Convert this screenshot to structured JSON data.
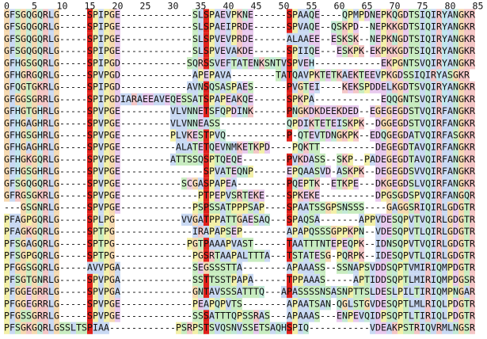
{
  "ruler": [
    0,
    5,
    10,
    15,
    20,
    25,
    30,
    35,
    40,
    45,
    50,
    55,
    60,
    65,
    70,
    75,
    80,
    85
  ],
  "rows": [
    "GFSGQGQRLG-----SPIPGE-------------SLSPAEVPKNE------SPAAQE----QPMPDNEPKQGDTSIQIRYANGKR",
    "GFSGQGQRLG-----SPIPGE-------------SLSPAEIPRDE------SPVAQE--QSKPD--NEPKKGDTSIQIRYANGKR",
    "GFSGQGQRLG-----SPIPGE-------------SLSPVEVPRDE------ALAAEE--ESKSK--NEPKNGDTSIQIRYANGKR",
    "GFSGQGQRLG-----SPIPGE-------------SLSPVEVAKDE------SPIIQE---ESKPK-EKPKKGDTSIQIRYANGKR",
    "GFHGSGQRLG-----SPIPGD------------SQRSSVEFTATENKSNTVSPVEH------------EKPGNTSVQIRYANGKR",
    "GFHGRGQRLG-----SPVPGD-------------APEPAVA--------TATQAVPKTETKAEKTEEVPKGDSSIQIRYASGKR",
    "GFQGTGKRLG-----SPIPGD------------AVNSQSASPAES------PVGTEI----KEKSPDDELKGDTSVQIRYANGKR",
    "GFGGSGRRLG-----SPIPGDIARAEEAVEQESSATSPAPEAKQE------SPKPA------------EQQGNTSVQIRYANGKR",
    "GFHGTGHRLG-----SPVPGE---------VLVNNETSFQPDINK------PNGKDKDEEKDED--EGEGEGDSTVQIRFANGKR",
    "GFHGAGHRLG-----SPVPGE---------VLVNNEASS------------QPDIKTETEISKPK--DGGEGDSTVQIRFANGKR",
    "GFHGSGHRLG-----SPVPGE---------PLVKESTPVQ-----------P-QTEVTDNGKPK--EDQGEGDATVQIRFASGKR",
    "GFHGAGHRLG-----SPVPGE----------ALATETQEVNMKETKPD----PQKTT----------DEGEGDTAVQIRFANGKR",
    "GFHGKGQRLG-----SPVPGE---------ATTSSQSPTQEQE--------PVKDASS--SKP--PADEGEGDTAVQIRFANGKR",
    "GFHGSGHRLG-----SPVPGE---------------SPVATEQNP------EPQAASVD-ASKPK--DEGEGDSVVQIRFANGKR",
    "GFSGQGQRLG-----SPVPGE-----------SCGASPAPEA---------PQEPTK--ETKPE---DKGEGDSLVQIRFANGKR",
    "GFRGSGKRLG-----SPVPGE--------------PTPEPVSRTEKE----SPKEKE----------DPGSGDSPVQIRFANGQR",
    "---GSGNRLG-----SPVPGE-------------PSPSSATPPPSAP----SPAATSSGPSNSSS----GAGGSRIQIRLGDGTR",
    "PFAGPGQRLG-----SPLPG------------VVGATPPATTGAESAQ---SPAQSA-------APPVDESQPVTVQIRLGDGTR",
    "PFAGKGQRLG-----SPTPG--------------IRAPAPSEP--------APAPQSSSGPPKPN--VDESQPVTLQIRLGDGTR",
    "PFSGAGQRLG-----SPTPG-------------PGTPAAAPVAST------TAATTTNTEPEQPK--IDNSQPVTVQIRLGDGTR",
    "PFSGPGQRLG-----SPTPG--------------PGSRTAAPALTTTA---TSTATESG-PQRPK--IDESQPVTLQIRLGDGTR",
    "PFGGSGQRLG-----AVVPGA-------------SEGSSSTTA--------APAAASS--SSNAPSVDDSQPTVMIRIQMPDGTR",
    "PFSGTGNRLG-----SPVPGA-------------SSTTSSTPAPA------TPPAAAS-----APTIDDSQPTLMIRIQMPDGSR",
    "PFGGEGRRLG-----SPVPGA-------------GNTAVSSSATTTQ---APASSSSNSASNPTTSLDESLPILTIRIQMPNGAR",
    "PFGGEGRRLG-----SPVPGE-------------PEAPQPVTS--------APAATSAN-QGLSTGVDESQPTLMLRIQLPDGTR",
    "PFGSSGRRLG-----SPVPGE-------------SSSATTTQPSSRAS---APAAAS---ENPEVQIDPSQPTLTIRIQLPDGTR",
    "PFSGKGQRLGSSLTSPIAA------------PSRPSTSVQSNVSSETSAQHSPIQ-----------VDEAKPSTRIQVRMLNGSR"
  ]
}
